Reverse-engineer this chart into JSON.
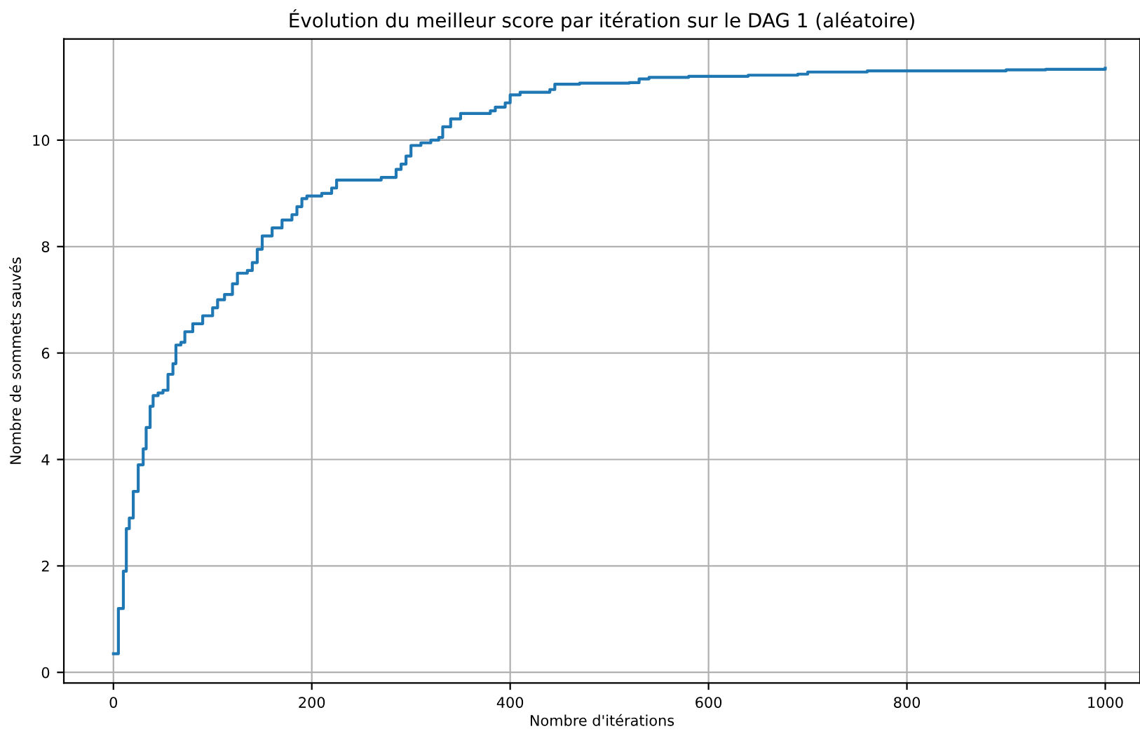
{
  "chart_data": {
    "type": "step",
    "title": "Évolution du meilleur score par itération sur le DAG 1 (aléatoire)",
    "xlabel": "Nombre d'itérations",
    "ylabel": "Nombre de sommets sauvés",
    "x": [
      0,
      5,
      10,
      13,
      16,
      20,
      25,
      30,
      33,
      37,
      40,
      45,
      50,
      55,
      60,
      63,
      68,
      72,
      80,
      90,
      100,
      105,
      112,
      120,
      125,
      135,
      140,
      145,
      150,
      160,
      170,
      180,
      185,
      190,
      195,
      210,
      220,
      225,
      260,
      270,
      285,
      290,
      295,
      300,
      310,
      320,
      328,
      332,
      340,
      350,
      380,
      385,
      395,
      400,
      410,
      440,
      445,
      470,
      520,
      530,
      540,
      580,
      640,
      690,
      700,
      760,
      850,
      900,
      940,
      1000
    ],
    "series": [
      {
        "color": "#1f77b4",
        "values": [
          0.35,
          1.2,
          1.9,
          2.7,
          2.9,
          3.4,
          3.9,
          4.2,
          4.6,
          5.0,
          5.2,
          5.25,
          5.3,
          5.6,
          5.8,
          6.15,
          6.2,
          6.4,
          6.55,
          6.7,
          6.85,
          7.0,
          7.1,
          7.3,
          7.5,
          7.55,
          7.7,
          7.95,
          8.2,
          8.35,
          8.5,
          8.6,
          8.75,
          8.9,
          8.95,
          9.0,
          9.1,
          9.25,
          9.25,
          9.3,
          9.45,
          9.55,
          9.7,
          9.9,
          9.95,
          10.0,
          10.05,
          10.25,
          10.4,
          10.5,
          10.55,
          10.62,
          10.7,
          10.85,
          10.9,
          10.95,
          11.05,
          11.07,
          11.08,
          11.15,
          11.18,
          11.2,
          11.22,
          11.24,
          11.28,
          11.3,
          11.3,
          11.32,
          11.33,
          11.35
        ]
      }
    ],
    "xlim": [
      -50,
      1035
    ],
    "ylim": [
      -0.2,
      11.9
    ],
    "xticks": [
      0,
      200,
      400,
      600,
      800,
      1000
    ],
    "yticks": [
      0,
      2,
      4,
      6,
      8,
      10
    ],
    "grid": true,
    "marker": "none",
    "line_style": "solid"
  }
}
